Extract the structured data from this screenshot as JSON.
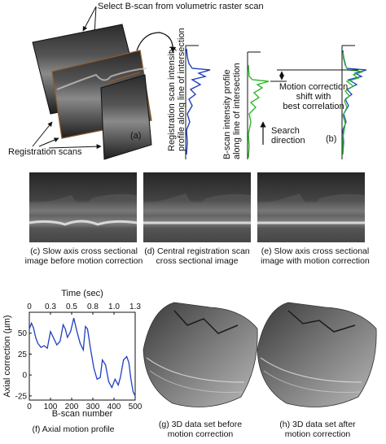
{
  "panel_a": {
    "top_label": "Select B-scan from volumetric raster scan",
    "registration_label": "Registration scans",
    "letter": "(a)",
    "profile_label_line1": "Registration scan intensity",
    "profile_label_line2": "profile along line of intersection",
    "profile_color": "#1f3fbf"
  },
  "panel_b": {
    "profile_label_line1": "B-scan intensity profile",
    "profile_label_line2": "along line of intersection",
    "shift_label_line1": "Motion correction",
    "shift_label_line2": "shift with",
    "shift_label_line3": "best correlation",
    "search_label_line1": "Search",
    "search_label_line2": "direction",
    "letter": "(b)",
    "profile_color": "#2db82d"
  },
  "panel_c": {
    "caption_line1": "(c) Slow axis cross sectional",
    "caption_line2": "image before motion correction"
  },
  "panel_d": {
    "caption_line1": "(d) Central registration scan",
    "caption_line2": "cross sectional image"
  },
  "panel_e": {
    "caption_line1": "(e) Slow axis cross sectional",
    "caption_line2": "image with motion correction"
  },
  "panel_f": {
    "caption": "(f) Axial motion profile"
  },
  "panel_g": {
    "caption_line1": "(g) 3D data set before",
    "caption_line2": "motion correction"
  },
  "panel_h": {
    "caption_line1": "(h) 3D data set after",
    "caption_line2": "motion correction"
  },
  "chart_data": {
    "type": "line",
    "title": "",
    "xlabel": "B-scan number",
    "ylabel": "Axial correction (µm)",
    "top_xlabel": "Time (sec)",
    "xlim": [
      0,
      500
    ],
    "ylim": [
      -30,
      75
    ],
    "xticks": [
      0,
      100,
      200,
      300,
      400,
      500
    ],
    "yticks": [
      -25,
      0,
      25,
      50
    ],
    "top_xticks": [
      "0",
      "0.3",
      "0.5",
      "0.8",
      "1.0",
      "1.3"
    ],
    "grid": false,
    "line_color": "#1f3fbf",
    "x": [
      0,
      10,
      20,
      30,
      40,
      55,
      70,
      85,
      100,
      115,
      130,
      145,
      160,
      170,
      180,
      195,
      210,
      225,
      240,
      255,
      265,
      275,
      290,
      305,
      320,
      335,
      345,
      360,
      375,
      390,
      405,
      420,
      430,
      445,
      460,
      470,
      480,
      490,
      500
    ],
    "y": [
      55,
      62,
      56,
      45,
      38,
      33,
      35,
      32,
      52,
      44,
      36,
      40,
      60,
      55,
      45,
      52,
      68,
      52,
      38,
      30,
      58,
      55,
      30,
      8,
      -5,
      -3,
      18,
      12,
      -8,
      -15,
      -5,
      -12,
      -3,
      18,
      22,
      15,
      -5,
      -20,
      -25
    ]
  }
}
